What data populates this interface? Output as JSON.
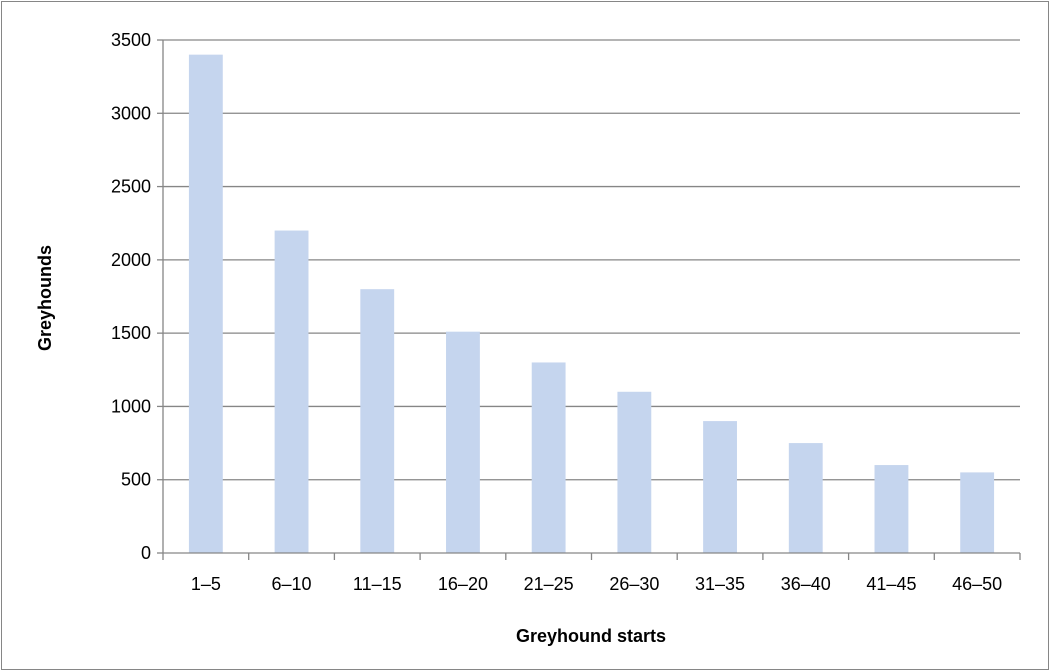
{
  "chart_data": {
    "type": "bar",
    "title": "",
    "xlabel": "Greyhound starts",
    "ylabel": "Greyhounds",
    "categories": [
      "1–5",
      "6–10",
      "11–15",
      "16–20",
      "21–25",
      "26–30",
      "31–35",
      "36–40",
      "41–45",
      "46–50"
    ],
    "values": [
      3400,
      2200,
      1800,
      1510,
      1300,
      1100,
      900,
      750,
      600,
      550
    ],
    "ylim": [
      0,
      3500
    ],
    "yticks": [
      "0",
      "500",
      "1000",
      "1500",
      "2000",
      "2500",
      "3000",
      "3500"
    ],
    "grid": true,
    "legend": "none",
    "bar_color": "#c5d5ee",
    "grid_color": "#868686"
  }
}
